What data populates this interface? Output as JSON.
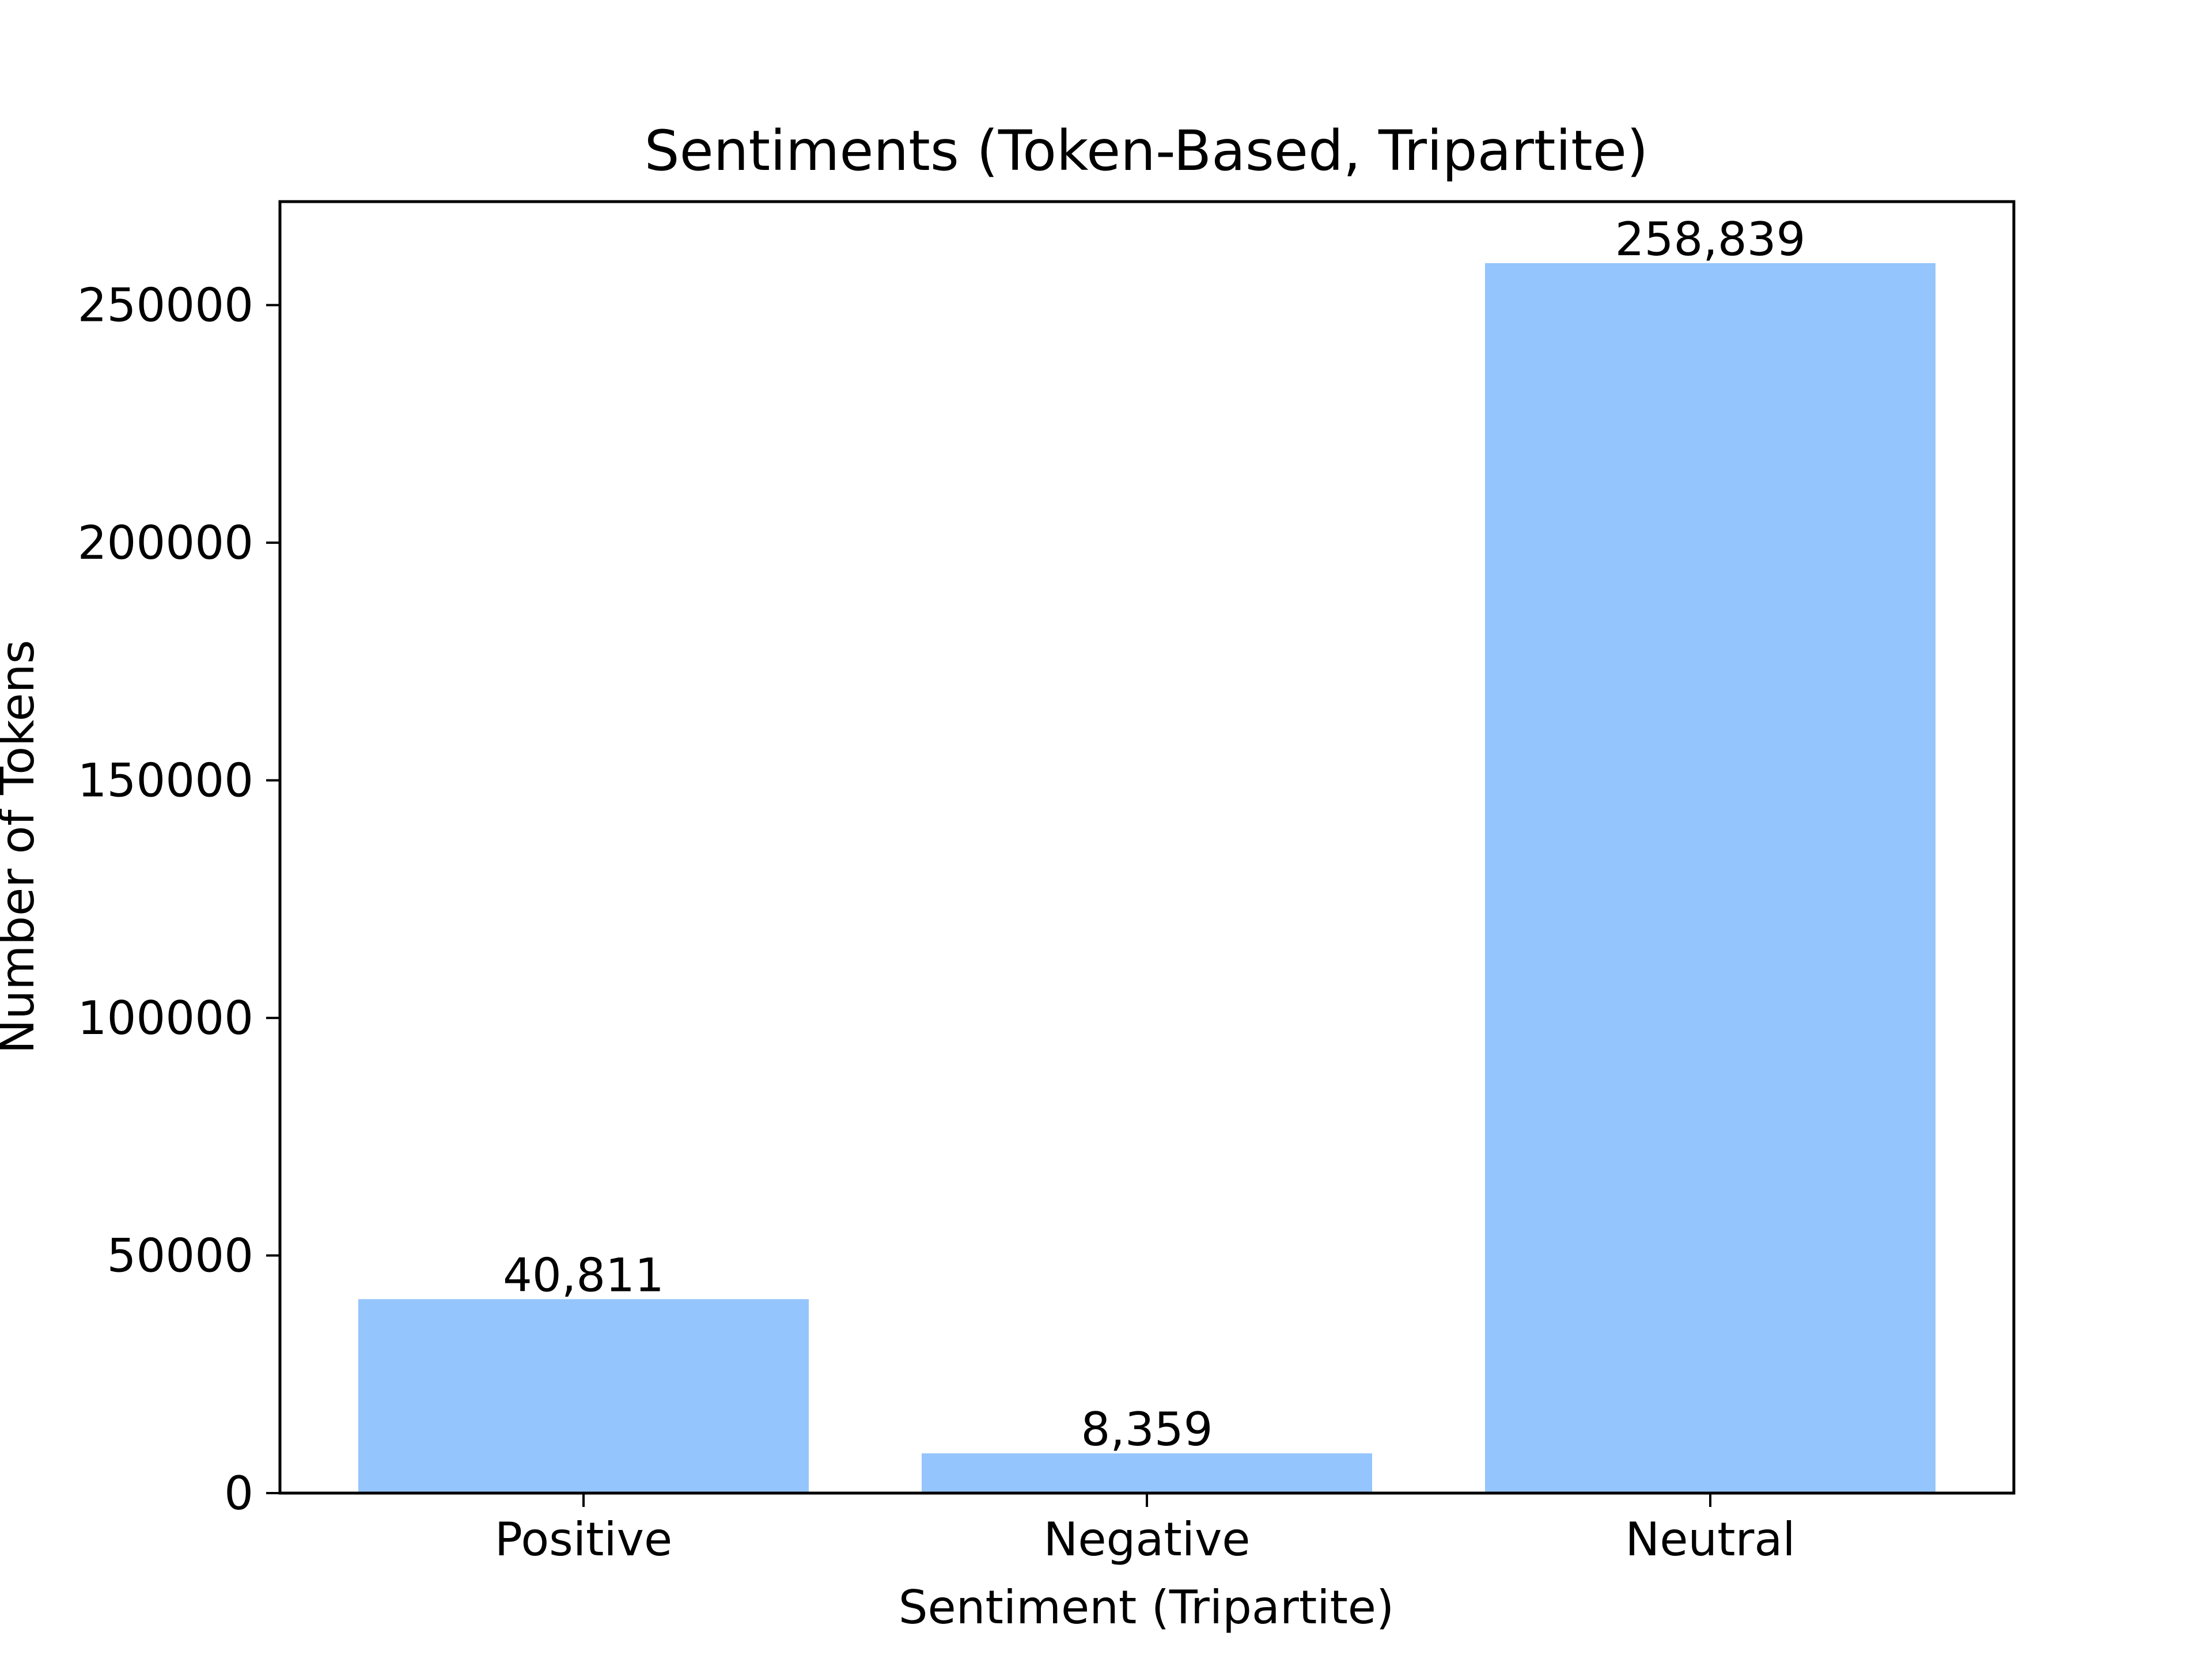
{
  "chart_data": {
    "type": "bar",
    "title": "Sentiments (Token-Based, Tripartite)",
    "xlabel": "Sentiment (Tripartite)",
    "ylabel": "Number of Tokens",
    "categories": [
      "Positive",
      "Negative",
      "Neutral"
    ],
    "values": [
      40811,
      8359,
      258839
    ],
    "data_labels": [
      "40,811",
      "8,359",
      "258,839"
    ],
    "yticks": [
      0,
      50000,
      100000,
      150000,
      200000,
      250000
    ],
    "ytick_labels": [
      "0",
      "50000",
      "100000",
      "150000",
      "200000",
      "250000"
    ],
    "ylim": [
      0,
      271781
    ],
    "grid": false,
    "legend": "none",
    "bar_color": "#94c5fd"
  }
}
